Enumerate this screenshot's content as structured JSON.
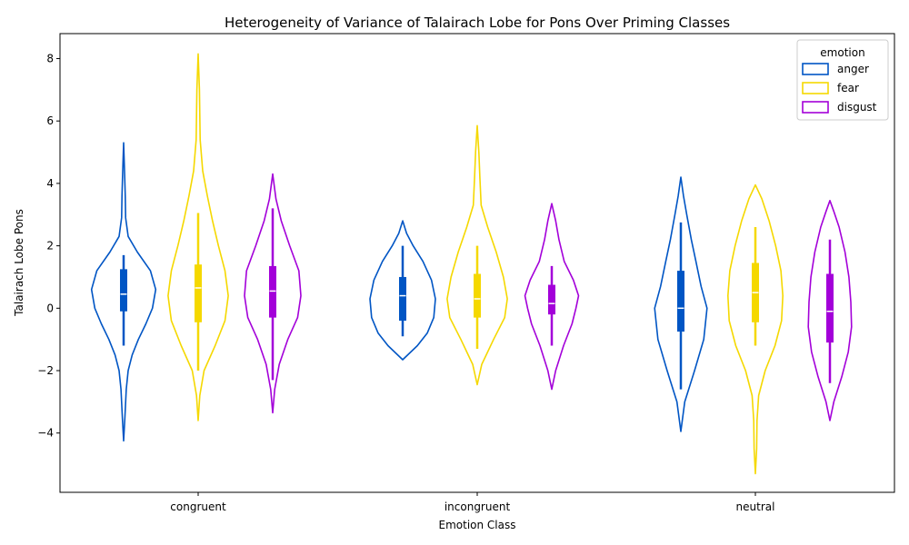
{
  "chart_data": {
    "type": "violin",
    "title": "Heterogeneity of Variance of Talairach Lobe for Pons Over Priming Classes",
    "xlabel": "Emotion Class",
    "ylabel": "Talairach Lobe Pons",
    "categories": [
      "congruent",
      "incongruent",
      "neutral"
    ],
    "ylim": [
      -5.9,
      8.8
    ],
    "yticks": [
      -4,
      -2,
      0,
      2,
      4,
      6,
      8
    ],
    "grid": false,
    "legend": {
      "title": "emotion",
      "position": "top-right"
    },
    "series": [
      {
        "name": "anger",
        "color": "#0055c4",
        "groups": [
          {
            "min": -4.25,
            "max": 5.3,
            "q1": -0.1,
            "median": 0.45,
            "q3": 1.25,
            "whisker_low": -1.2,
            "whisker_high": 1.7,
            "density": [
              [
                -4.25,
                0.0
              ],
              [
                -3.5,
                0.04
              ],
              [
                -2.6,
                0.08
              ],
              [
                -2.0,
                0.14
              ],
              [
                -1.5,
                0.26
              ],
              [
                -1.0,
                0.45
              ],
              [
                -0.5,
                0.68
              ],
              [
                0.0,
                0.88
              ],
              [
                0.6,
                0.98
              ],
              [
                1.2,
                0.82
              ],
              [
                1.8,
                0.42
              ],
              [
                2.3,
                0.14
              ],
              [
                2.9,
                0.06
              ],
              [
                3.6,
                0.05
              ],
              [
                4.3,
                0.03
              ],
              [
                5.3,
                0.0
              ]
            ]
          },
          {
            "min": -1.65,
            "max": 2.8,
            "q1": -0.4,
            "median": 0.4,
            "q3": 1.0,
            "whisker_low": -0.9,
            "whisker_high": 2.0,
            "density": [
              [
                -1.65,
                0.0
              ],
              [
                -1.2,
                0.45
              ],
              [
                -0.8,
                0.75
              ],
              [
                -0.3,
                0.95
              ],
              [
                0.3,
                1.0
              ],
              [
                0.9,
                0.88
              ],
              [
                1.5,
                0.62
              ],
              [
                2.0,
                0.32
              ],
              [
                2.4,
                0.12
              ],
              [
                2.8,
                0.0
              ]
            ]
          },
          {
            "min": -3.95,
            "max": 4.2,
            "q1": -0.75,
            "median": 0.0,
            "q3": 1.2,
            "whisker_low": -2.6,
            "whisker_high": 2.75,
            "density": [
              [
                -3.95,
                0.0
              ],
              [
                -3.0,
                0.12
              ],
              [
                -2.0,
                0.42
              ],
              [
                -1.0,
                0.7
              ],
              [
                0.0,
                0.8
              ],
              [
                0.7,
                0.62
              ],
              [
                1.5,
                0.46
              ],
              [
                2.2,
                0.32
              ],
              [
                3.0,
                0.18
              ],
              [
                3.6,
                0.08
              ],
              [
                4.2,
                0.0
              ]
            ]
          }
        ]
      },
      {
        "name": "fear",
        "color": "#f5d800",
        "groups": [
          {
            "min": -3.6,
            "max": 8.15,
            "q1": -0.45,
            "median": 0.65,
            "q3": 1.4,
            "whisker_low": -2.0,
            "whisker_high": 3.05,
            "density": [
              [
                -3.6,
                0.0
              ],
              [
                -2.8,
                0.05
              ],
              [
                -2.0,
                0.18
              ],
              [
                -1.2,
                0.52
              ],
              [
                -0.4,
                0.82
              ],
              [
                0.4,
                0.92
              ],
              [
                1.2,
                0.82
              ],
              [
                2.0,
                0.62
              ],
              [
                2.8,
                0.44
              ],
              [
                3.6,
                0.28
              ],
              [
                4.4,
                0.14
              ],
              [
                5.4,
                0.06
              ],
              [
                6.2,
                0.05
              ],
              [
                7.0,
                0.04
              ],
              [
                8.15,
                0.0
              ]
            ]
          },
          {
            "min": -2.45,
            "max": 5.85,
            "q1": -0.3,
            "median": 0.3,
            "q3": 1.1,
            "whisker_low": -1.3,
            "whisker_high": 2.0,
            "density": [
              [
                -2.45,
                0.0
              ],
              [
                -1.8,
                0.14
              ],
              [
                -1.0,
                0.5
              ],
              [
                -0.3,
                0.84
              ],
              [
                0.3,
                0.92
              ],
              [
                1.0,
                0.8
              ],
              [
                1.8,
                0.58
              ],
              [
                2.6,
                0.32
              ],
              [
                3.3,
                0.12
              ],
              [
                4.2,
                0.08
              ],
              [
                5.0,
                0.05
              ],
              [
                5.85,
                0.0
              ]
            ]
          },
          {
            "min": -5.3,
            "max": 3.95,
            "q1": -0.45,
            "median": 0.5,
            "q3": 1.45,
            "whisker_low": -1.2,
            "whisker_high": 2.6,
            "density": [
              [
                -5.3,
                0.0
              ],
              [
                -4.5,
                0.04
              ],
              [
                -3.6,
                0.05
              ],
              [
                -2.8,
                0.1
              ],
              [
                -2.0,
                0.3
              ],
              [
                -1.2,
                0.6
              ],
              [
                -0.4,
                0.8
              ],
              [
                0.4,
                0.84
              ],
              [
                1.2,
                0.78
              ],
              [
                2.0,
                0.62
              ],
              [
                2.8,
                0.42
              ],
              [
                3.5,
                0.2
              ],
              [
                3.95,
                0.0
              ]
            ]
          }
        ]
      },
      {
        "name": "disgust",
        "color": "#a300d9",
        "groups": [
          {
            "min": -3.35,
            "max": 4.3,
            "q1": -0.3,
            "median": 0.55,
            "q3": 1.35,
            "whisker_low": -2.3,
            "whisker_high": 3.2,
            "density": [
              [
                -3.35,
                0.0
              ],
              [
                -2.6,
                0.06
              ],
              [
                -1.8,
                0.2
              ],
              [
                -1.0,
                0.46
              ],
              [
                -0.3,
                0.76
              ],
              [
                0.4,
                0.86
              ],
              [
                1.2,
                0.8
              ],
              [
                2.0,
                0.52
              ],
              [
                2.8,
                0.26
              ],
              [
                3.5,
                0.1
              ],
              [
                4.3,
                0.0
              ]
            ]
          },
          {
            "min": -2.6,
            "max": 3.35,
            "q1": -0.2,
            "median": 0.15,
            "q3": 0.75,
            "whisker_low": -1.2,
            "whisker_high": 1.35,
            "density": [
              [
                -2.6,
                0.0
              ],
              [
                -2.0,
                0.12
              ],
              [
                -1.2,
                0.36
              ],
              [
                -0.5,
                0.62
              ],
              [
                0.0,
                0.74
              ],
              [
                0.4,
                0.82
              ],
              [
                0.9,
                0.66
              ],
              [
                1.5,
                0.38
              ],
              [
                2.2,
                0.22
              ],
              [
                2.8,
                0.12
              ],
              [
                3.35,
                0.0
              ]
            ]
          },
          {
            "min": -3.6,
            "max": 3.45,
            "q1": -1.1,
            "median": -0.1,
            "q3": 1.1,
            "whisker_low": -2.4,
            "whisker_high": 2.2,
            "density": [
              [
                -3.6,
                0.0
              ],
              [
                -3.0,
                0.12
              ],
              [
                -2.2,
                0.36
              ],
              [
                -1.4,
                0.56
              ],
              [
                -0.6,
                0.66
              ],
              [
                0.2,
                0.64
              ],
              [
                1.0,
                0.58
              ],
              [
                1.8,
                0.46
              ],
              [
                2.6,
                0.28
              ],
              [
                3.1,
                0.12
              ],
              [
                3.45,
                0.0
              ]
            ]
          }
        ]
      }
    ]
  }
}
